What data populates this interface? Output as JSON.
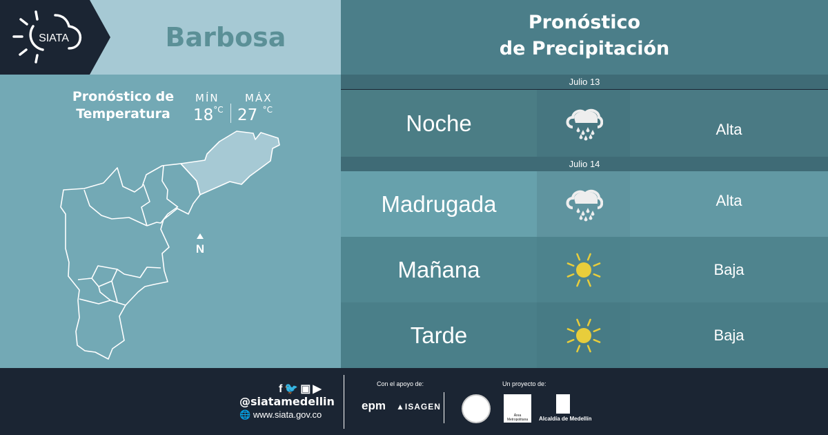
{
  "header": {
    "brand": "SIATA",
    "city": "Barbosa"
  },
  "temperature": {
    "title_line1": "Pronóstico de",
    "title_line2": "Temperatura",
    "min_label": "MÍN",
    "max_label": "MÁX",
    "min_value": "18",
    "max_value": "27",
    "unit": "°C"
  },
  "map": {
    "north_label": "N",
    "highlight_color": "#a6c9d4"
  },
  "precipitation": {
    "title_line1": "Pronóstico",
    "title_line2": "de Precipitación",
    "days": [
      {
        "date": "Julio 13",
        "rows": [
          {
            "period": "Noche",
            "icon": "rain-cloud-icon",
            "level": "Alta"
          }
        ]
      },
      {
        "date": "Julio 14",
        "rows": [
          {
            "period": "Madrugada",
            "icon": "rain-cloud-icon",
            "level": "Alta"
          },
          {
            "period": "Mañana",
            "icon": "sun-icon",
            "level": "Baja"
          },
          {
            "period": "Tarde",
            "icon": "sun-icon",
            "level": "Baja"
          }
        ]
      }
    ]
  },
  "footer": {
    "handle": "@siatamedellin",
    "website": "www.siata.gov.co",
    "support_label": "Con el apoyo de:",
    "project_label": "Un proyecto de:",
    "sponsors": [
      "epm",
      "ISAGEN"
    ],
    "partners": [
      "Área Metropolitana",
      "Alcaldía de Medellín"
    ]
  },
  "colors": {
    "sun": "#e8cd3b",
    "dark": "#1b2533"
  }
}
